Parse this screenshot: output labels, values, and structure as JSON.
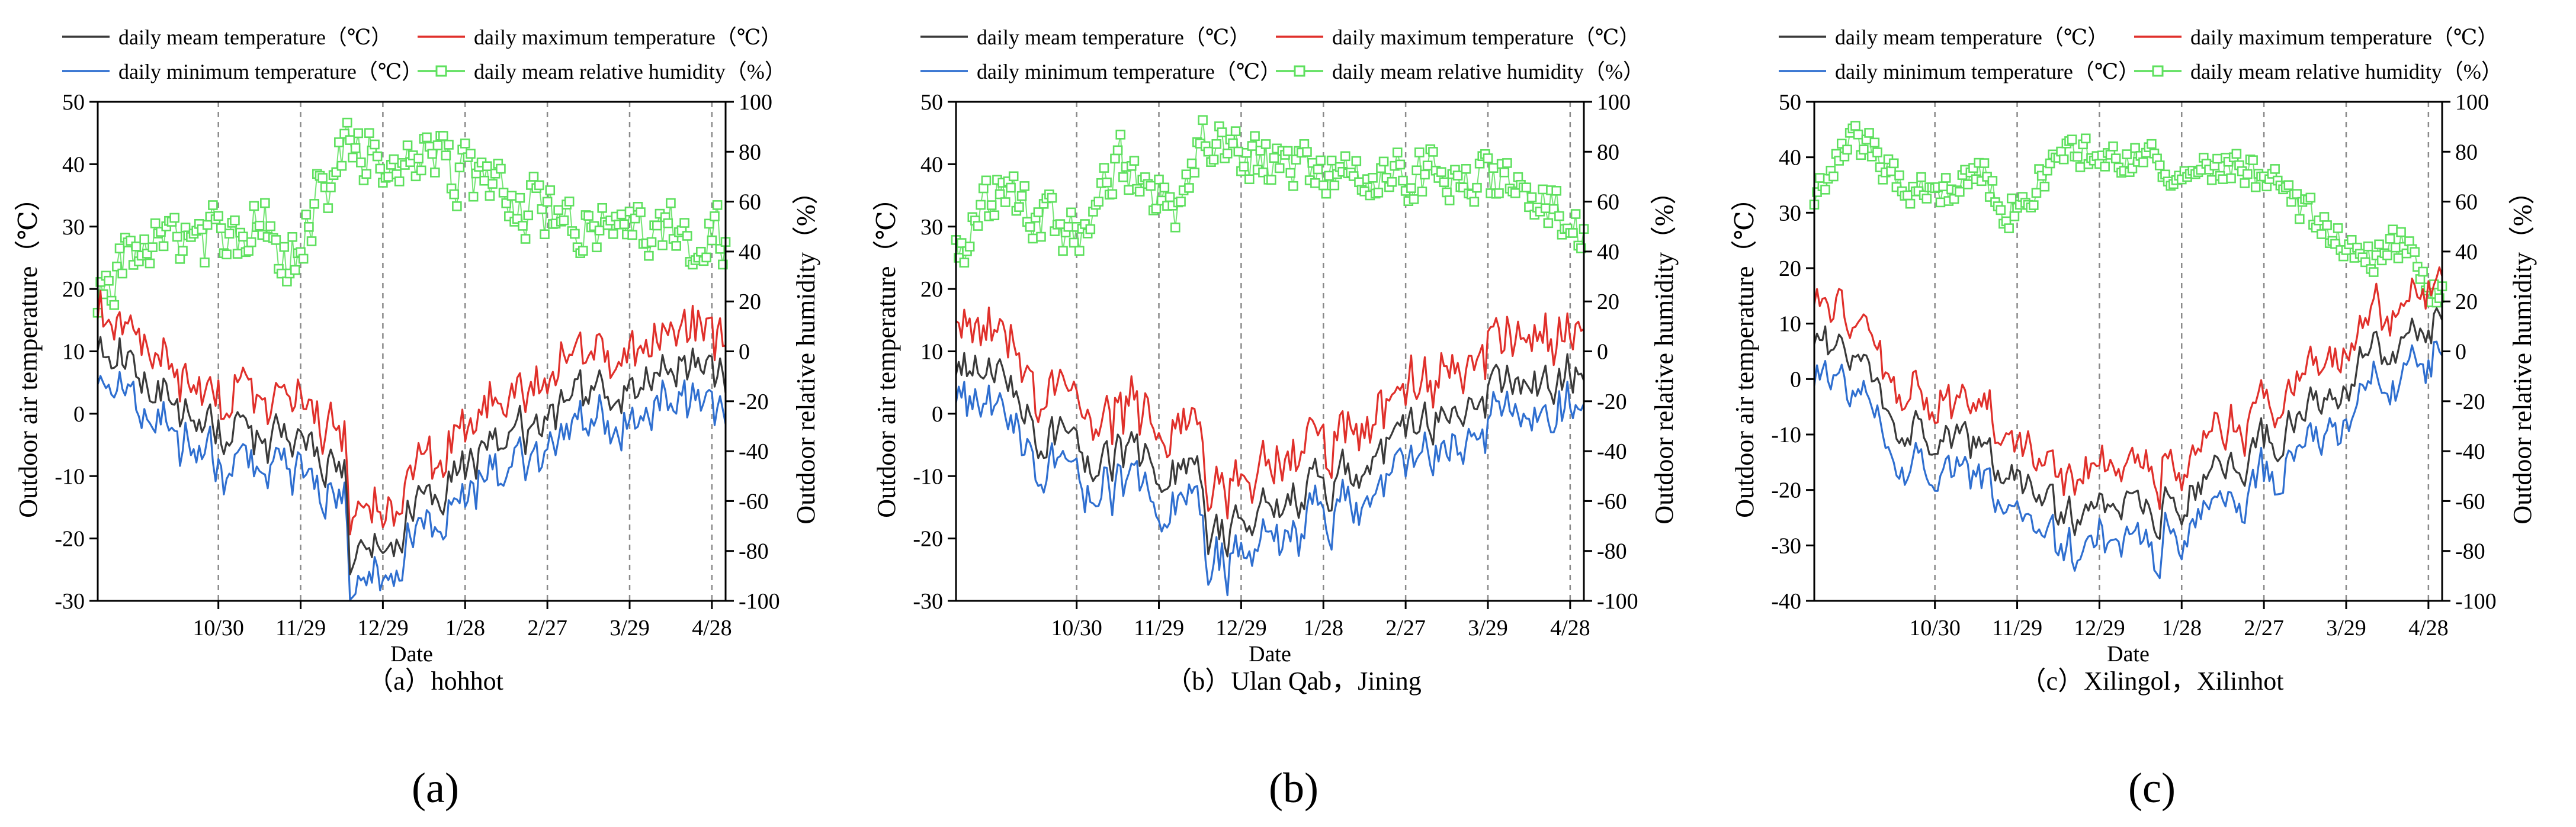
{
  "legend": {
    "mean_label": "daily meam temperature（℃）",
    "max_label": "daily maximum temperature（℃）",
    "min_label": "daily minimum temperature（℃）",
    "humidity_label": "daily meam relative humidity（%）"
  },
  "colors": {
    "mean": "#3a3a3a",
    "max": "#e0302b",
    "min": "#2f6fd0",
    "humidity": "#5ee05e"
  },
  "chart_data": [
    {
      "type": "line",
      "title": "（a）hohhot",
      "panel_label": "(a)",
      "xlabel": "Date",
      "ylabel": "Outdoor air temperature（℃）",
      "y2label": "Outdoor relative humidity（%）",
      "xticks": [
        "10/30",
        "11/29",
        "12/29",
        "1/28",
        "2/27",
        "3/29",
        "4/28"
      ],
      "ylim": [
        -30,
        50
      ],
      "yticks": [
        -30,
        -20,
        -10,
        0,
        10,
        20,
        30,
        40,
        50
      ],
      "y2lim": [
        -100,
        100
      ],
      "y2ticks": [
        -100,
        -80,
        -60,
        -40,
        -20,
        0,
        20,
        40,
        60,
        80,
        100
      ],
      "seed": 11,
      "mean_anchors": [
        [
          0,
          12
        ],
        [
          15,
          9
        ],
        [
          30,
          0
        ],
        [
          60,
          -5
        ],
        [
          85,
          -7
        ],
        [
          90,
          -10
        ],
        [
          92,
          -24
        ],
        [
          100,
          -23
        ],
        [
          120,
          -12
        ],
        [
          150,
          -5
        ],
        [
          180,
          2
        ],
        [
          200,
          5
        ],
        [
          215,
          8
        ],
        [
          229,
          5
        ]
      ],
      "max_delta": 6,
      "min_delta": -5,
      "humidity_anchors": [
        [
          0,
          25
        ],
        [
          20,
          50
        ],
        [
          40,
          43
        ],
        [
          60,
          52
        ],
        [
          70,
          35
        ],
        [
          80,
          60
        ],
        [
          90,
          80
        ],
        [
          110,
          82
        ],
        [
          130,
          70
        ],
        [
          150,
          60
        ],
        [
          180,
          50
        ],
        [
          200,
          48
        ],
        [
          229,
          45
        ]
      ],
      "humidity_amp": 14
    },
    {
      "type": "line",
      "title": "（b）Ulan Qab，Jining",
      "panel_label": "(b)",
      "xlabel": "Date",
      "ylabel": "Outdoor air temperature（℃）",
      "y2label": "Outdoor relative humidity（%）",
      "xticks": [
        "10/30",
        "11/29",
        "12/29",
        "1/28",
        "2/27",
        "3/29",
        "4/28"
      ],
      "ylim": [
        -30,
        50
      ],
      "yticks": [
        -30,
        -20,
        -10,
        0,
        10,
        20,
        30,
        40,
        50
      ],
      "y2lim": [
        -100,
        100
      ],
      "y2ticks": [
        -100,
        -80,
        -60,
        -40,
        -20,
        0,
        20,
        40,
        60,
        80,
        100
      ],
      "seed": 29,
      "mean_anchors": [
        [
          0,
          8
        ],
        [
          15,
          5
        ],
        [
          30,
          -3
        ],
        [
          60,
          -7
        ],
        [
          85,
          -9
        ],
        [
          90,
          -12
        ],
        [
          92,
          -22
        ],
        [
          100,
          -20
        ],
        [
          120,
          -14
        ],
        [
          150,
          -8
        ],
        [
          180,
          0
        ],
        [
          200,
          4
        ],
        [
          215,
          6
        ],
        [
          229,
          8
        ]
      ],
      "max_delta": 7,
      "min_delta": -5,
      "humidity_anchors": [
        [
          0,
          40
        ],
        [
          15,
          62
        ],
        [
          30,
          55
        ],
        [
          45,
          45
        ],
        [
          60,
          75
        ],
        [
          80,
          60
        ],
        [
          90,
          90
        ],
        [
          110,
          75
        ],
        [
          130,
          75
        ],
        [
          150,
          70
        ],
        [
          180,
          70
        ],
        [
          200,
          70
        ],
        [
          215,
          60
        ],
        [
          229,
          45
        ]
      ],
      "humidity_amp": 12
    },
    {
      "type": "line",
      "title": "（c）Xilingol，Xilinhot",
      "panel_label": "(c)",
      "xlabel": "Date",
      "ylabel": "Outdoor air temperature（℃）",
      "y2label": "Outdoor relative humidity（%）",
      "xticks": [
        "10/30",
        "11/29",
        "12/29",
        "1/28",
        "2/27",
        "3/29",
        "4/28"
      ],
      "ylim": [
        -40,
        50
      ],
      "yticks": [
        -40,
        -30,
        -20,
        -10,
        0,
        10,
        20,
        30,
        40,
        50
      ],
      "y2lim": [
        -100,
        100
      ],
      "y2ticks": [
        -100,
        -80,
        -60,
        -40,
        -20,
        0,
        20,
        40,
        60,
        80,
        100
      ],
      "seed": 47,
      "mean_anchors": [
        [
          0,
          8
        ],
        [
          15,
          3
        ],
        [
          30,
          -8
        ],
        [
          60,
          -13
        ],
        [
          90,
          -26
        ],
        [
          110,
          -23
        ],
        [
          120,
          -25
        ],
        [
          150,
          -17
        ],
        [
          180,
          -5
        ],
        [
          200,
          3
        ],
        [
          215,
          8
        ],
        [
          229,
          12
        ]
      ],
      "max_delta": 7,
      "min_delta": -6,
      "humidity_anchors": [
        [
          0,
          60
        ],
        [
          15,
          85
        ],
        [
          30,
          70
        ],
        [
          45,
          60
        ],
        [
          60,
          75
        ],
        [
          70,
          55
        ],
        [
          90,
          80
        ],
        [
          110,
          78
        ],
        [
          130,
          75
        ],
        [
          150,
          75
        ],
        [
          170,
          65
        ],
        [
          190,
          45
        ],
        [
          200,
          35
        ],
        [
          215,
          45
        ],
        [
          229,
          20
        ]
      ],
      "humidity_amp": 8
    }
  ]
}
